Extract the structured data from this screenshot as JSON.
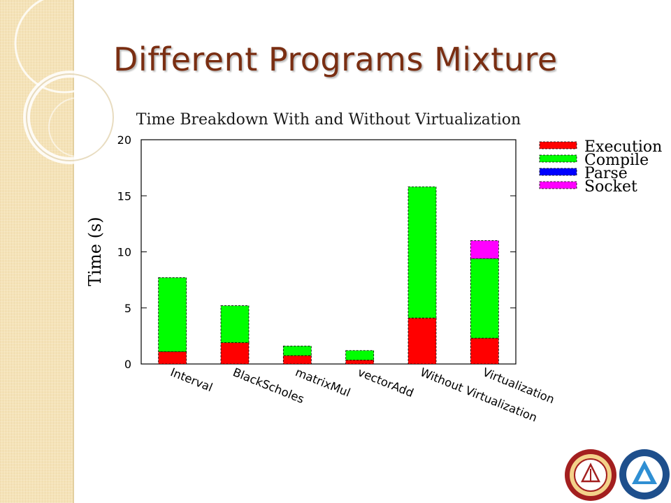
{
  "slide": {
    "title": "Different Programs Mixture"
  },
  "chart_data": {
    "type": "bar",
    "stacked": true,
    "title": "Time Breakdown With and Without Virtualization",
    "ylabel": "Time (s)",
    "xlabel": "",
    "ylim": [
      0,
      20
    ],
    "yticks": [
      0,
      5,
      10,
      15,
      20
    ],
    "grid": false,
    "legend_position": "right, outside plot",
    "categories": [
      "Interval",
      "BlackScholes",
      "matrixMul",
      "vectorAdd",
      "Without Virtualization",
      "Virtualization"
    ],
    "series": [
      {
        "name": "Execution",
        "color": "#ff0000",
        "values": [
          1.1,
          1.9,
          0.75,
          0.35,
          4.1,
          2.3
        ]
      },
      {
        "name": "Compile",
        "color": "#00ff00",
        "values": [
          6.6,
          3.3,
          0.85,
          0.85,
          11.7,
          7.1
        ]
      },
      {
        "name": "Parse",
        "color": "#0000ff",
        "values": [
          0,
          0,
          0,
          0,
          0,
          0
        ]
      },
      {
        "name": "Socket",
        "color": "#ff00ff",
        "values": [
          0,
          0,
          0,
          0,
          0,
          1.6
        ]
      }
    ]
  },
  "logos": [
    {
      "name": "university-seal",
      "colors": [
        "#9a1c1c",
        "#e0b43c"
      ]
    },
    {
      "name": "institute-emblem",
      "colors": [
        "#1e4f8c",
        "#ffffff"
      ]
    }
  ]
}
